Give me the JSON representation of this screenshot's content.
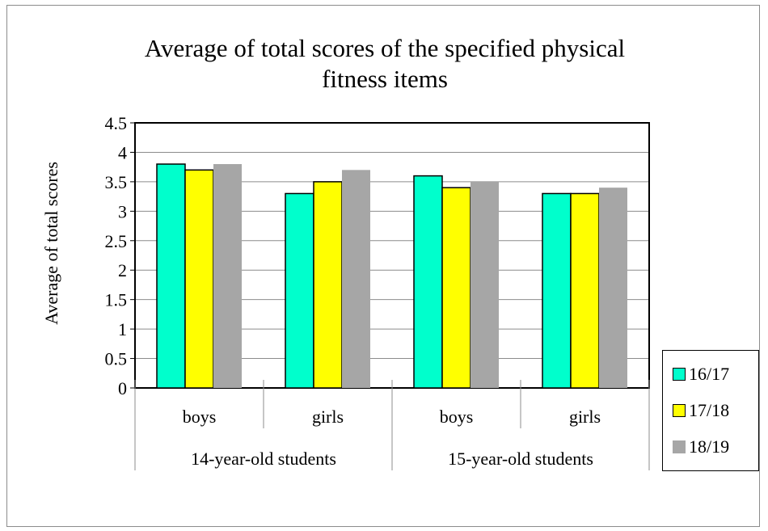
{
  "chart_data": {
    "type": "bar",
    "title": "Average of total scores of the specified physical fitness items",
    "title_lines": [
      "Average of total scores of the specified physical",
      "fitness items"
    ],
    "ylabel": "Average of total scores",
    "xlabel": "",
    "ylim": [
      0,
      4.5
    ],
    "yticks": [
      "0",
      "0.5",
      "1",
      "1.5",
      "2",
      "2.5",
      "3",
      "3.5",
      "4",
      "4.5"
    ],
    "ytick_values": [
      0,
      0.5,
      1,
      1.5,
      2,
      2.5,
      3,
      3.5,
      4,
      4.5
    ],
    "categories": [
      "boys",
      "girls",
      "boys",
      "girls"
    ],
    "groups": [
      "14-year-old students",
      "15-year-old students"
    ],
    "grid": true,
    "legend_position": "right-bottom",
    "series": [
      {
        "name": "16/17",
        "color": "#00FFCC",
        "values": [
          3.8,
          3.3,
          3.6,
          3.3
        ]
      },
      {
        "name": "17/18",
        "color": "#FFFF00",
        "values": [
          3.7,
          3.5,
          3.4,
          3.3
        ]
      },
      {
        "name": "18/19",
        "color": "#A6A6A6",
        "values": [
          3.8,
          3.7,
          3.5,
          3.4
        ]
      }
    ]
  }
}
